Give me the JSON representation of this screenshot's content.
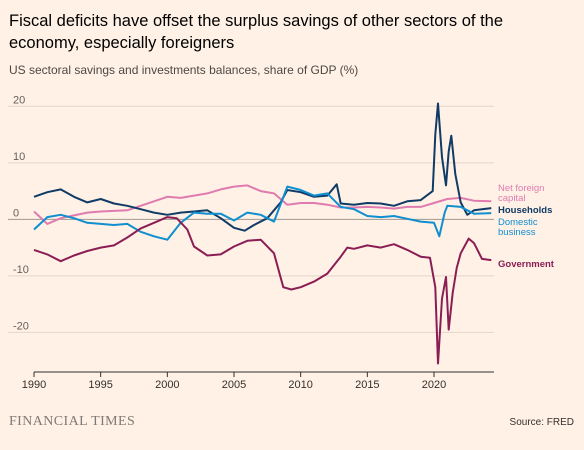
{
  "header": {
    "title": "Fiscal deficits have offset the surplus savings of other sectors of the economy, especially foreigners",
    "subtitle": "US sectoral savings and investments balances, share of GDP (%)"
  },
  "footer": {
    "brand": "FINANCIAL TIMES",
    "source": "Source: FRED"
  },
  "chart_data": {
    "type": "line",
    "title": "Fiscal deficits have offset the surplus savings of other sectors of the economy, especially foreigners",
    "subtitle": "US sectoral savings and investments balances, share of GDP (%)",
    "xlabel": "",
    "ylabel": "",
    "xlim": [
      1990,
      2024.5
    ],
    "ylim": [
      -27,
      22
    ],
    "yticks": [
      20,
      10,
      0,
      -10,
      -20
    ],
    "xticks": [
      1990,
      1995,
      2000,
      2005,
      2010,
      2015,
      2020
    ],
    "grid": true,
    "legend": "direct labels at right end of lines",
    "series": [
      {
        "name": "Net foreign capital",
        "label_lines": [
          "Net foreign",
          "capital"
        ],
        "color": "#e07bb0",
        "x": [
          1990,
          1991,
          1992,
          1993,
          1994,
          1995,
          1996,
          1997,
          1998,
          1999,
          2000,
          2001,
          2002,
          2003,
          2004,
          2005,
          2006,
          2007,
          2008,
          2009,
          2010,
          2011,
          2012,
          2013,
          2014,
          2015,
          2016,
          2017,
          2018,
          2019,
          2020,
          2021,
          2022,
          2023,
          2024.3
        ],
        "y": [
          1.4,
          -0.8,
          0.2,
          0.7,
          1.2,
          1.4,
          1.5,
          1.6,
          2.4,
          3.2,
          4.0,
          3.8,
          4.2,
          4.6,
          5.3,
          5.8,
          6.0,
          5.0,
          4.6,
          2.6,
          2.9,
          2.9,
          2.6,
          2.1,
          2.1,
          2.2,
          2.1,
          1.9,
          2.2,
          2.2,
          2.9,
          3.6,
          3.8,
          3.3,
          3.2
        ]
      },
      {
        "name": "Households",
        "label_lines": [
          "Households"
        ],
        "color": "#0f3b66",
        "x": [
          1990,
          1991,
          1992,
          1993,
          1994,
          1995,
          1996,
          1997,
          1998,
          1999,
          2000,
          2001,
          2002,
          2003,
          2004,
          2005,
          2005.8,
          2006.5,
          2007.5,
          2008.5,
          2009,
          2010,
          2011,
          2012,
          2012.7,
          2013,
          2014,
          2015,
          2016,
          2017,
          2018,
          2019,
          2019.9,
          2020.1,
          2020.3,
          2020.6,
          2020.9,
          2021.1,
          2021.3,
          2021.6,
          2022,
          2022.5,
          2023,
          2024.3
        ],
        "y": [
          4.0,
          4.8,
          5.3,
          4.0,
          3.0,
          3.6,
          2.8,
          2.4,
          1.8,
          1.2,
          0.8,
          1.2,
          1.4,
          1.6,
          0.2,
          -1.5,
          -2.0,
          -1.0,
          0.2,
          3.0,
          5.2,
          4.8,
          4.0,
          4.2,
          6.2,
          2.8,
          2.6,
          2.9,
          2.8,
          2.4,
          3.2,
          3.4,
          5.0,
          15.0,
          20.5,
          11.0,
          6.0,
          12.0,
          14.8,
          8.0,
          3.0,
          0.8,
          1.6,
          2.0
        ]
      },
      {
        "name": "Domestic business",
        "label_lines": [
          "Domestic",
          "business"
        ],
        "color": "#0f8fd0",
        "x": [
          1990,
          1991,
          1992,
          1993,
          1994,
          1995,
          1996,
          1997,
          1998,
          1999,
          2000,
          2001,
          2002,
          2003,
          2004,
          2005,
          2006,
          2007,
          2008,
          2009,
          2010,
          2011,
          2012,
          2013,
          2014,
          2015,
          2016,
          2017,
          2018,
          2019,
          2020,
          2020.4,
          2020.8,
          2021,
          2022,
          2023,
          2024.3
        ],
        "y": [
          -1.8,
          0.4,
          0.8,
          0.2,
          -0.6,
          -0.8,
          -1.0,
          -0.8,
          -2.2,
          -3.0,
          -3.6,
          -0.6,
          1.2,
          1.0,
          1.0,
          -0.2,
          1.2,
          0.8,
          -0.4,
          5.8,
          5.2,
          4.2,
          4.6,
          2.2,
          1.8,
          0.6,
          0.4,
          0.6,
          0.1,
          -0.4,
          -0.6,
          -3.0,
          1.2,
          2.4,
          2.2,
          1.0,
          1.1
        ]
      },
      {
        "name": "Government",
        "label_lines": [
          "Government"
        ],
        "color": "#8a1e54",
        "x": [
          1990,
          1991,
          1992,
          1993,
          1994,
          1995,
          1996,
          1997,
          1998,
          1999,
          2000,
          2000.7,
          2001.5,
          2002,
          2003,
          2004,
          2005,
          2006,
          2007,
          2008,
          2008.7,
          2009.3,
          2010,
          2011,
          2012,
          2013,
          2013.5,
          2014,
          2015,
          2016,
          2017,
          2018,
          2019,
          2019.7,
          2020.1,
          2020.3,
          2020.6,
          2020.9,
          2021.1,
          2021.4,
          2021.7,
          2022,
          2022.6,
          2023,
          2023.6,
          2024.3
        ],
        "y": [
          -5.4,
          -6.2,
          -7.4,
          -6.4,
          -5.6,
          -5.0,
          -4.6,
          -3.2,
          -1.6,
          -0.6,
          0.4,
          0.2,
          -1.8,
          -4.8,
          -6.4,
          -6.2,
          -4.8,
          -3.8,
          -3.6,
          -6.0,
          -12.0,
          -12.4,
          -12.0,
          -11.0,
          -9.6,
          -6.6,
          -5.0,
          -5.2,
          -4.6,
          -5.0,
          -4.4,
          -5.4,
          -6.6,
          -6.8,
          -12.0,
          -25.5,
          -14.0,
          -10.2,
          -19.5,
          -13.0,
          -8.6,
          -6.0,
          -3.4,
          -4.2,
          -7.0,
          -7.2
        ]
      }
    ]
  }
}
